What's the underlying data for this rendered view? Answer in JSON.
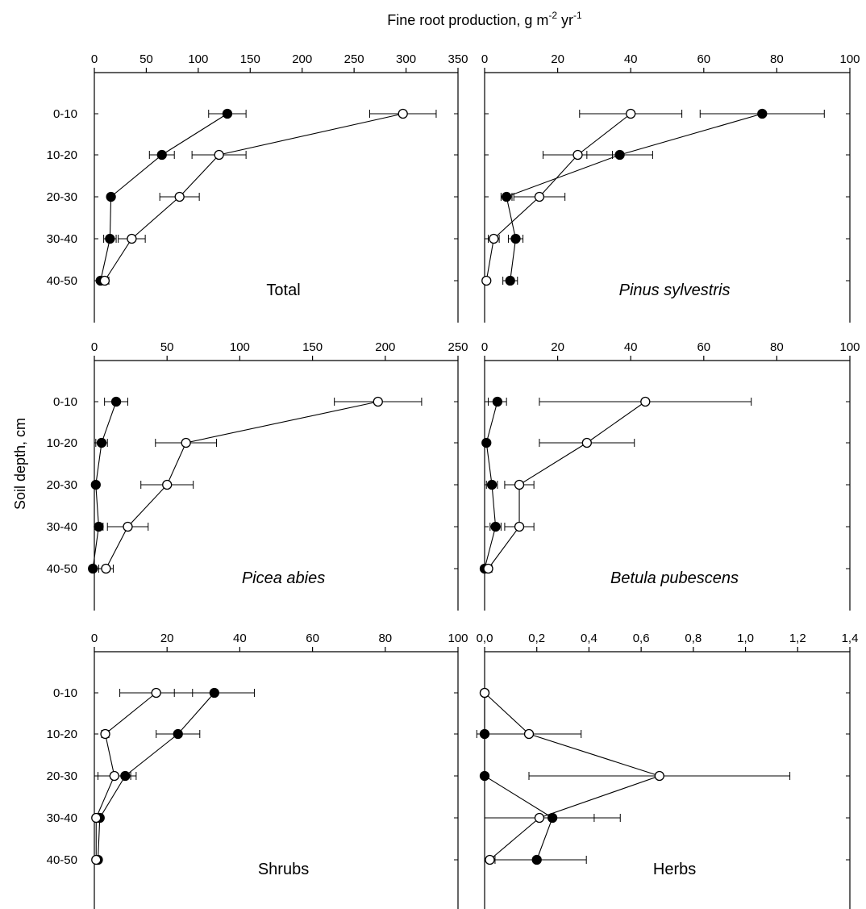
{
  "figure": {
    "xlabel_main": "Fine root production, g m",
    "xlabel_sup1": "-2",
    "xlabel_mid": " yr",
    "xlabel_sup2": "-1",
    "ylabel": "Soil depth, cm"
  },
  "chart_data": [
    {
      "type": "line",
      "title": "Total",
      "italic_title": false,
      "categories": [
        "0-10",
        "10-20",
        "20-30",
        "30-40",
        "40-50"
      ],
      "xlim": [
        0,
        350
      ],
      "xticks": [
        "0",
        "50",
        "100",
        "150",
        "200",
        "250",
        "300",
        "350"
      ],
      "xtick_values": [
        0,
        50,
        100,
        150,
        200,
        250,
        300,
        350
      ],
      "series": [
        {
          "marker": "filled",
          "values": [
            128,
            65,
            16,
            15,
            6
          ],
          "errors": [
            18,
            12,
            2,
            6,
            2
          ]
        },
        {
          "marker": "open",
          "values": [
            297,
            120,
            82,
            36,
            10
          ],
          "errors": [
            32,
            26,
            19,
            13,
            4
          ]
        }
      ]
    },
    {
      "type": "line",
      "title": "Pinus sylvestris",
      "italic_title": true,
      "categories": [
        "0-10",
        "10-20",
        "20-30",
        "30-40",
        "40-50"
      ],
      "xlim": [
        0,
        100
      ],
      "xticks": [
        "0",
        "20",
        "40",
        "60",
        "80",
        "100"
      ],
      "xtick_values": [
        0,
        20,
        40,
        60,
        80,
        100
      ],
      "series": [
        {
          "marker": "filled",
          "values": [
            76,
            37,
            6,
            8.5,
            7
          ],
          "errors": [
            17,
            9,
            1.5,
            2,
            2
          ]
        },
        {
          "marker": "open",
          "values": [
            40,
            25.5,
            15,
            2.5,
            0.5
          ],
          "errors": [
            14,
            9.5,
            7,
            1.5,
            0.5
          ]
        }
      ]
    },
    {
      "type": "line",
      "title": "Picea abies",
      "italic_title": true,
      "categories": [
        "0-10",
        "10-20",
        "20-30",
        "30-40",
        "40-50"
      ],
      "xlim": [
        0,
        250
      ],
      "xticks": [
        "0",
        "50",
        "100",
        "150",
        "200",
        "250"
      ],
      "xtick_values": [
        0,
        50,
        100,
        150,
        200,
        250
      ],
      "series": [
        {
          "marker": "filled",
          "values": [
            15,
            5,
            1,
            3,
            -1
          ],
          "errors": [
            8,
            4,
            0,
            3,
            0
          ]
        },
        {
          "marker": "open",
          "values": [
            195,
            63,
            50,
            23,
            8
          ],
          "errors": [
            30,
            21,
            18,
            14,
            5
          ]
        }
      ]
    },
    {
      "type": "line",
      "title": "Betula pubescens",
      "italic_title": true,
      "categories": [
        "0-10",
        "10-20",
        "20-30",
        "30-40",
        "40-50"
      ],
      "xlim": [
        0,
        100
      ],
      "xticks": [
        "0",
        "20",
        "40",
        "60",
        "80",
        "100"
      ],
      "xtick_values": [
        0,
        20,
        40,
        60,
        80,
        100
      ],
      "series": [
        {
          "marker": "filled",
          "values": [
            3.5,
            0.5,
            2,
            3,
            0
          ],
          "errors": [
            2.5,
            0.5,
            1.5,
            1.5,
            0.5
          ]
        },
        {
          "marker": "open",
          "values": [
            44,
            28,
            9.5,
            9.5,
            1
          ],
          "errors": [
            29,
            13,
            4,
            4,
            1
          ]
        }
      ]
    },
    {
      "type": "line",
      "title": "Shrubs",
      "italic_title": false,
      "categories": [
        "0-10",
        "10-20",
        "20-30",
        "30-40",
        "40-50"
      ],
      "xlim": [
        0,
        100
      ],
      "xticks": [
        "0",
        "20",
        "40",
        "60",
        "80",
        "100"
      ],
      "xtick_values": [
        0,
        20,
        40,
        60,
        80,
        100
      ],
      "series": [
        {
          "marker": "filled",
          "values": [
            33,
            23,
            8.5,
            1.5,
            1
          ],
          "errors": [
            11,
            6,
            3,
            0.5,
            0.5
          ]
        },
        {
          "marker": "open",
          "values": [
            17,
            3,
            5.5,
            0.5,
            0.5
          ],
          "errors": [
            10,
            1,
            4.5,
            0.5,
            0.5
          ]
        }
      ]
    },
    {
      "type": "line",
      "title": "Herbs",
      "italic_title": false,
      "categories": [
        "0-10",
        "10-20",
        "20-30",
        "30-40",
        "40-50"
      ],
      "xlim": [
        0,
        1.4
      ],
      "xticks": [
        "0,0",
        "0,2",
        "0,4",
        "0,6",
        "0,8",
        "1,0",
        "1,2",
        "1,4"
      ],
      "xtick_values": [
        0,
        0.2,
        0.4,
        0.6,
        0.8,
        1.0,
        1.2,
        1.4
      ],
      "series": [
        {
          "marker": "filled",
          "values": [
            0,
            0,
            0,
            0.26,
            0.2
          ],
          "errors": [
            0,
            0,
            0,
            0.26,
            0.19
          ]
        },
        {
          "marker": "open",
          "values": [
            0,
            0.17,
            0.67,
            0.21,
            0.02
          ],
          "errors": [
            0,
            0.2,
            0.5,
            0.21,
            0.02
          ]
        }
      ]
    }
  ]
}
